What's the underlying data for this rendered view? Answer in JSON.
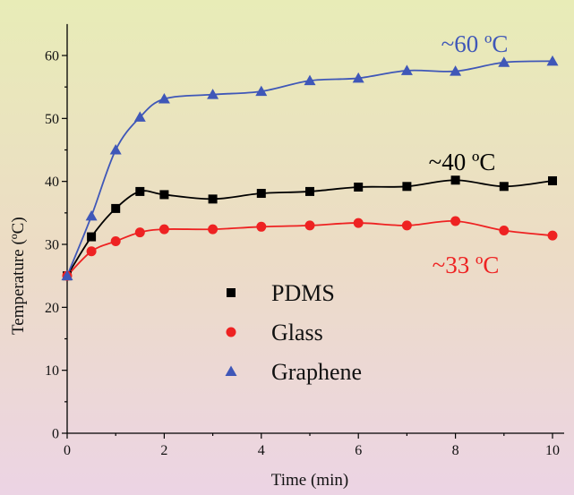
{
  "chart_data": {
    "type": "line",
    "xlabel": "Time (min)",
    "ylabel": "Temperature (ºC)",
    "xlim": [
      0,
      10
    ],
    "ylim": [
      0,
      65
    ],
    "xticks": [
      0,
      2,
      4,
      6,
      8,
      10
    ],
    "yticks": [
      0,
      10,
      20,
      30,
      40,
      50,
      60
    ],
    "grid": false,
    "legend_position": "center",
    "series": [
      {
        "name": "PDMS",
        "color": "#000000",
        "marker": "square",
        "x": [
          0,
          0.5,
          1,
          1.5,
          2,
          3,
          4,
          5,
          6,
          7,
          8,
          9,
          10
        ],
        "y": [
          25,
          31.2,
          35.7,
          38.4,
          37.9,
          37.2,
          38.1,
          38.4,
          39.1,
          39.2,
          40.2,
          39.2,
          40.1
        ],
        "annotation": "~40 ºC",
        "annotation_color": "#000000"
      },
      {
        "name": "Glass",
        "color": "#ee2222",
        "marker": "circle",
        "x": [
          0,
          0.5,
          1,
          1.5,
          2,
          3,
          4,
          5,
          6,
          7,
          8,
          9,
          10
        ],
        "y": [
          25,
          28.9,
          30.5,
          31.9,
          32.4,
          32.4,
          32.8,
          33.0,
          33.4,
          33.0,
          33.7,
          32.2,
          31.4
        ],
        "annotation": "~33 ºC",
        "annotation_color": "#ee2222"
      },
      {
        "name": "Graphene",
        "color": "#3f57b8",
        "marker": "triangle",
        "x": [
          0,
          0.5,
          1,
          1.5,
          2,
          3,
          4,
          5,
          6,
          7,
          8,
          9,
          10
        ],
        "y": [
          25,
          34.5,
          45.0,
          50.2,
          53.1,
          53.8,
          54.3,
          56.0,
          56.4,
          57.6,
          57.5,
          58.9,
          59.1
        ],
        "annotation": "~60 ºC",
        "annotation_color": "#3f57b8"
      }
    ]
  }
}
